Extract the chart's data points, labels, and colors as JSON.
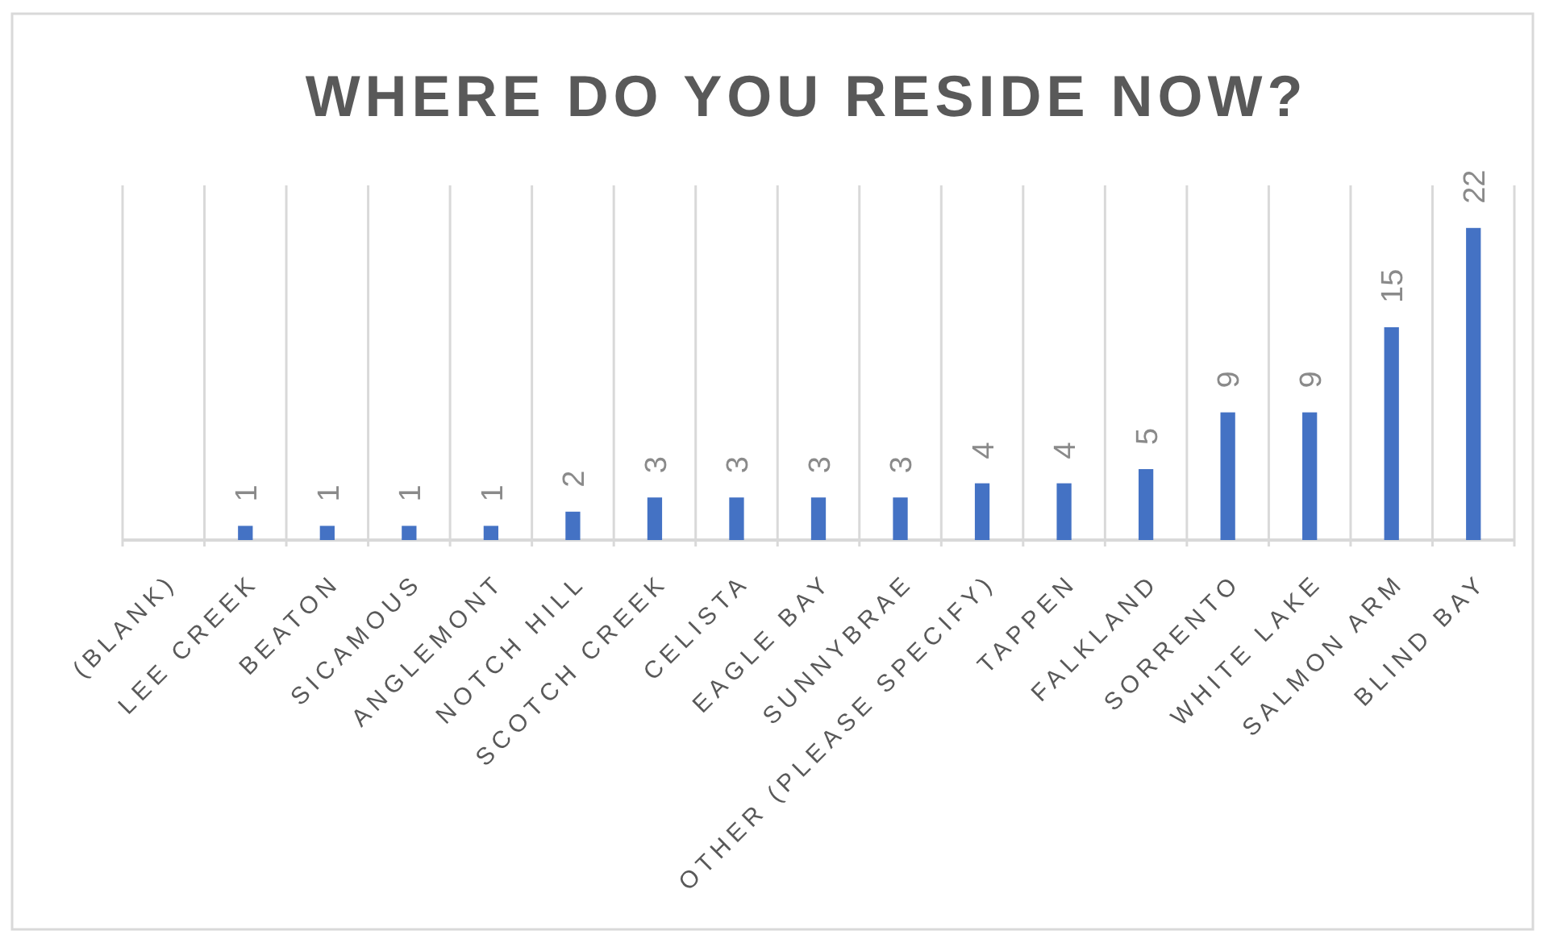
{
  "chart_data": {
    "type": "bar",
    "title": "WHERE DO YOU RESIDE NOW?",
    "categories": [
      "(BLANK)",
      "LEE CREEK",
      "BEATON",
      "SICAMOUS",
      "ANGLEMONT",
      "NOTCH HILL",
      "SCOTCH CREEK",
      "CELISTA",
      "EAGLE BAY",
      "SUNNYBRAE",
      "OTHER (PLEASE SPECIFY)",
      "TAPPEN",
      "FALKLAND",
      "SORRENTO",
      "WHITE LAKE",
      "SALMON ARM",
      "BLIND BAY"
    ],
    "values": [
      null,
      1,
      1,
      1,
      1,
      2,
      3,
      3,
      3,
      3,
      4,
      4,
      5,
      9,
      9,
      15,
      22
    ],
    "color": "#4472c4",
    "ylim": [
      0,
      25
    ],
    "grid": "x",
    "data_labels": true,
    "tick_labels": "x"
  }
}
